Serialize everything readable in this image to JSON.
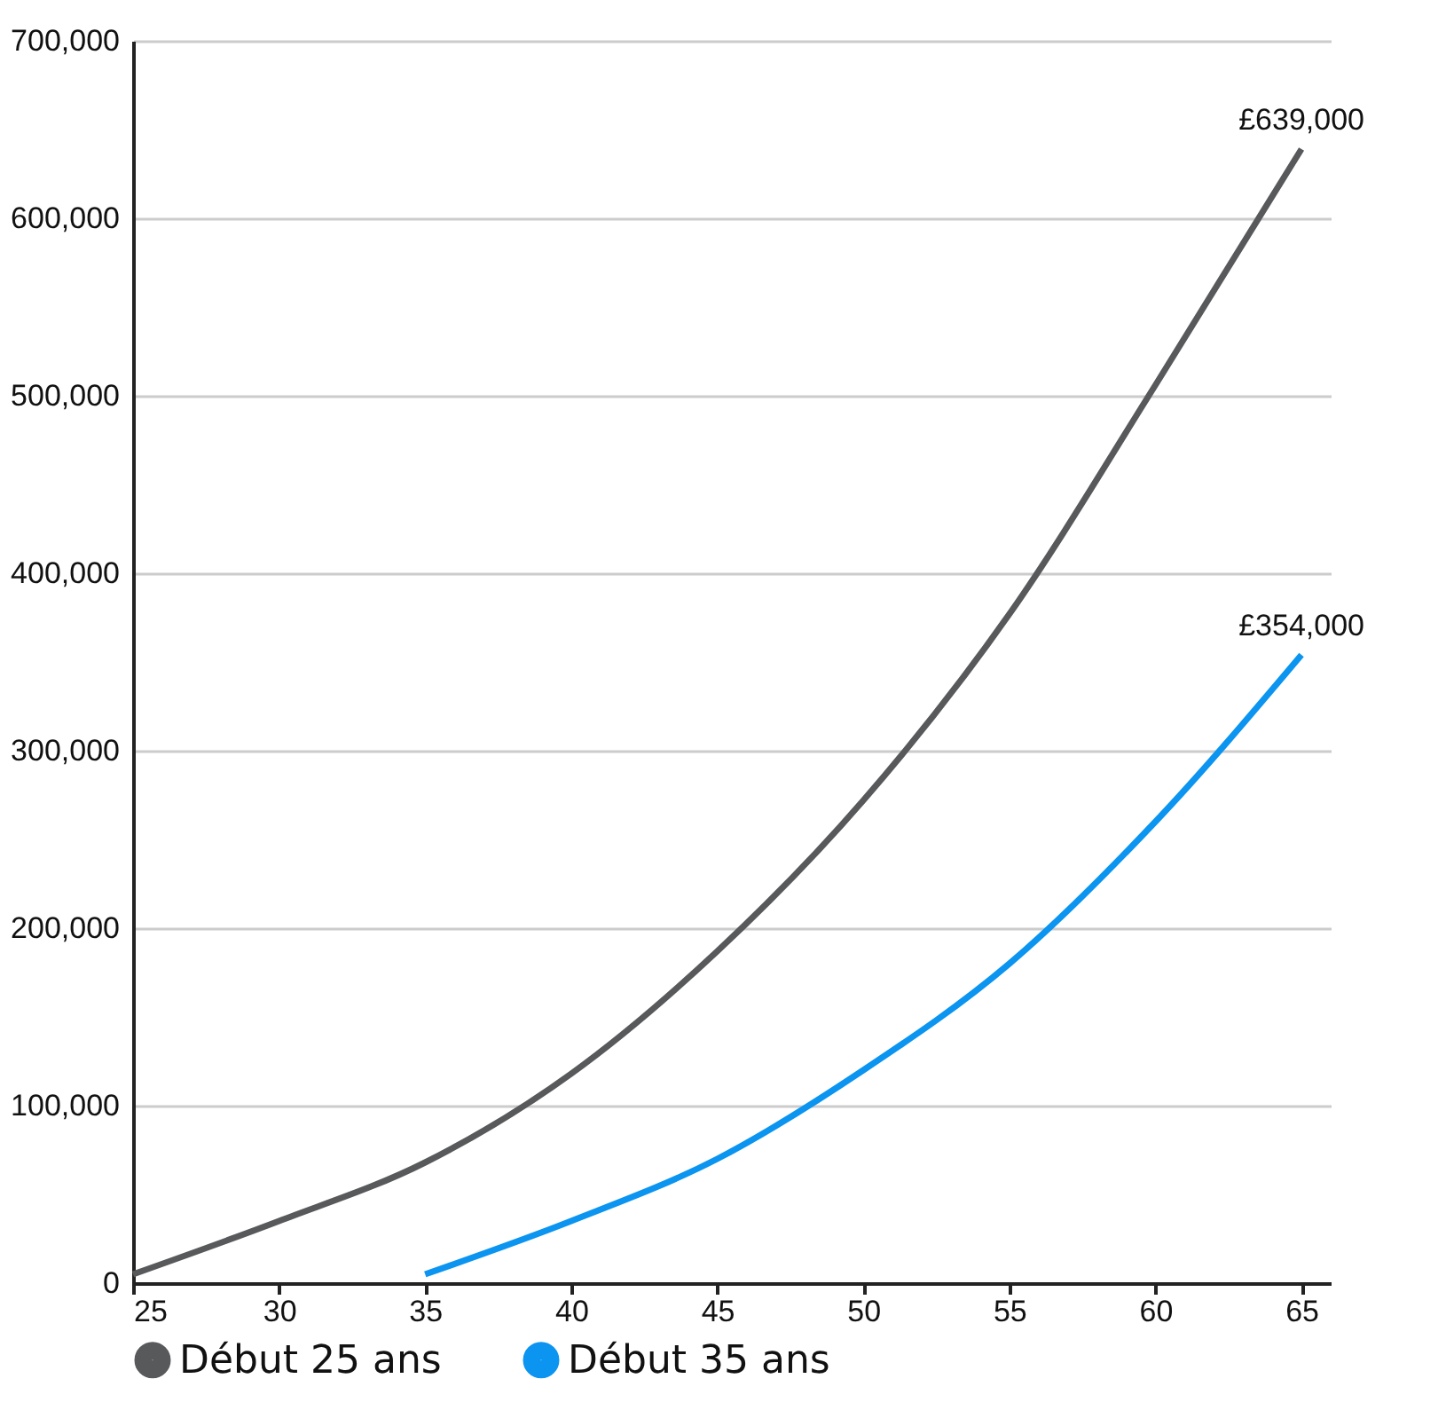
{
  "chart_data": {
    "type": "line",
    "x": [
      25,
      30,
      35,
      40,
      45,
      50,
      55,
      60,
      65
    ],
    "series": [
      {
        "name": "Début 25 ans",
        "color": "#58595b",
        "values": [
          5000,
          35000,
          68000,
          118000,
          187000,
          272000,
          377000,
          506000,
          639000
        ]
      },
      {
        "name": "Début 35 ans",
        "color": "#0b94f0",
        "x": [
          35,
          40,
          45,
          50,
          55,
          60,
          65
        ],
        "values": [
          5000,
          35000,
          70000,
          120000,
          180000,
          260000,
          354000
        ]
      }
    ],
    "xlim": [
      25,
      66
    ],
    "xticks": [
      25,
      30,
      35,
      40,
      45,
      50,
      55,
      60,
      65
    ],
    "ylim": [
      0,
      700000
    ],
    "yticks": [
      {
        "value": 0,
        "label": "0"
      },
      {
        "value": 100000,
        "label": "100,000"
      },
      {
        "value": 200000,
        "label": "200,000"
      },
      {
        "value": 300000,
        "label": "300,000"
      },
      {
        "value": 400000,
        "label": "400,000"
      },
      {
        "value": 500000,
        "label": "500,000"
      },
      {
        "value": 600000,
        "label": "600,000"
      },
      {
        "value": 700000,
        "label": "700,000"
      }
    ],
    "grid": "y",
    "legend": "bottom",
    "marker": "none",
    "line_style": "solid",
    "annotations": [
      {
        "text": "£639,000",
        "x": 65,
        "y": 639000
      },
      {
        "text": "£354,000",
        "x": 65,
        "y": 354000
      }
    ]
  }
}
